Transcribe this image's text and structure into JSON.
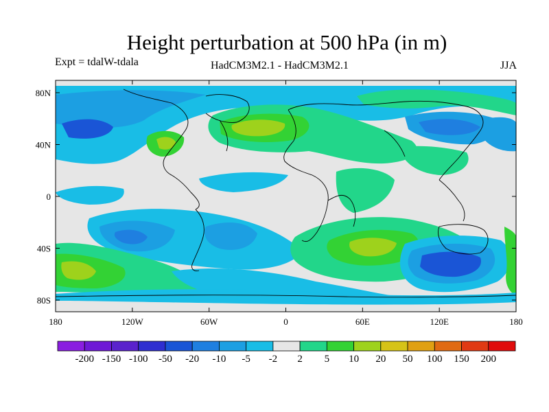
{
  "title": "Height perturbation at 500 hPa (in m)",
  "experiment": "Expt = tdalW-tdala",
  "models": "HadCM3M2.1 - HadCM3M2.1",
  "season": "JJA",
  "axes": {
    "x_ticks": [
      "180",
      "120W",
      "60W",
      "0",
      "60E",
      "120E",
      "180"
    ],
    "y_ticks": [
      "80N",
      "40N",
      "0",
      "40S",
      "80S"
    ]
  },
  "colorbar": {
    "labels": [
      "-200",
      "-150",
      "-100",
      "-50",
      "-20",
      "-10",
      "-5",
      "-2",
      "2",
      "5",
      "10",
      "20",
      "50",
      "100",
      "150",
      "200"
    ],
    "colors": [
      "#8a1ee0",
      "#6e19d6",
      "#5a22cc",
      "#2f2fd0",
      "#1a55d6",
      "#1f7fe0",
      "#1c9fe2",
      "#19bde6",
      "#e6e6e6",
      "#22d68a",
      "#33d234",
      "#9ed21c",
      "#d6c317",
      "#e0a012",
      "#e06a12",
      "#e03a14",
      "#e00c0c"
    ]
  },
  "map_colors": {
    "background": "#e6e6e6",
    "coast": "#000000"
  }
}
